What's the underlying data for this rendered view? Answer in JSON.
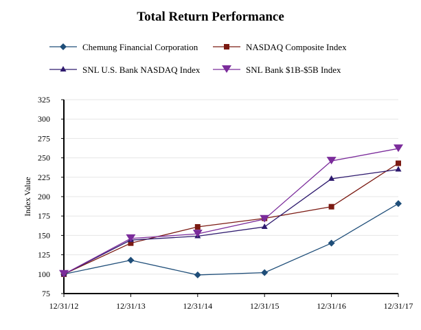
{
  "chart_data": {
    "type": "line",
    "title": "Total Return Performance",
    "ylabel": "Index Value",
    "xlabel": "",
    "ylim": [
      75,
      325
    ],
    "yticks": [
      75,
      100,
      125,
      150,
      175,
      200,
      225,
      250,
      275,
      300,
      325
    ],
    "categories": [
      "12/31/12",
      "12/31/13",
      "12/31/14",
      "12/31/15",
      "12/31/16",
      "12/31/17"
    ],
    "grid": true,
    "legend": "top",
    "series": [
      {
        "name": "Chemung Financial Corporation",
        "color": "#1F4E79",
        "marker": "diamond",
        "values": [
          100,
          118,
          99,
          102,
          140,
          191
        ]
      },
      {
        "name": "NASDAQ Composite Index",
        "color": "#7B1A12",
        "marker": "square",
        "values": [
          100,
          140,
          161,
          172,
          187,
          243
        ]
      },
      {
        "name": "SNL U.S. Bank NASDAQ Index",
        "color": "#2E1A6E",
        "marker": "triangle-up",
        "values": [
          100,
          144,
          149,
          161,
          223,
          235
        ]
      },
      {
        "name": "SNL Bank $1B-$5B Index",
        "color": "#7B2C9B",
        "marker": "triangle-down",
        "values": [
          100,
          146,
          152,
          171,
          246,
          262
        ]
      }
    ]
  }
}
